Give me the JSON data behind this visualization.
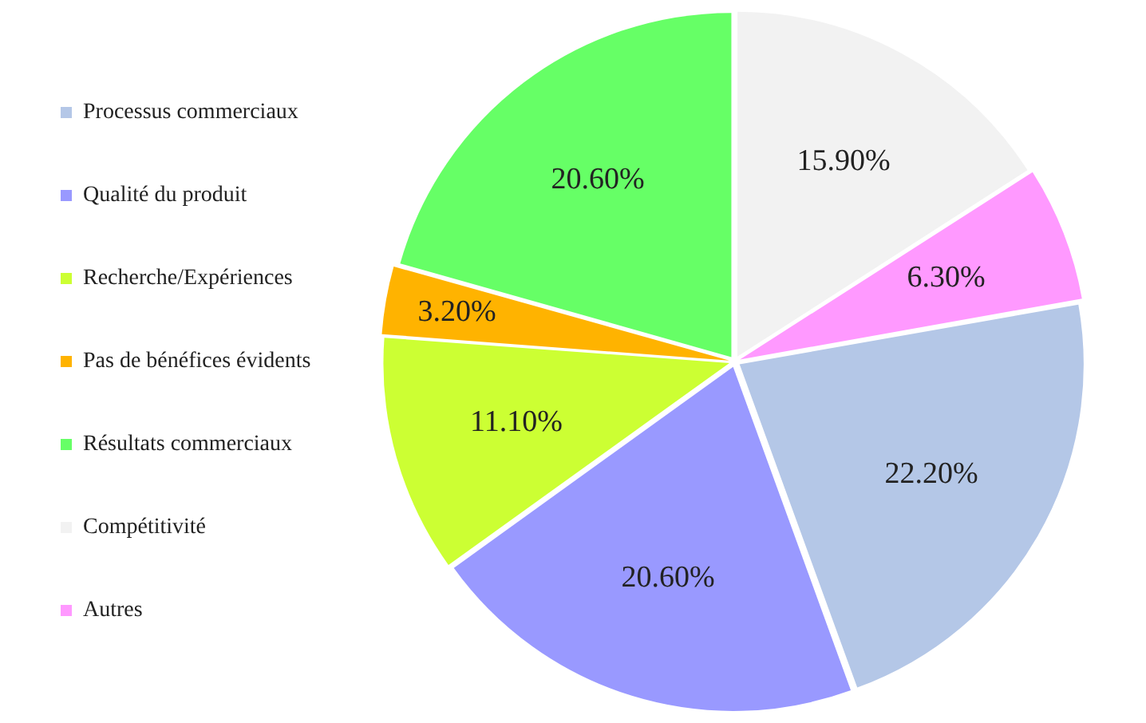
{
  "chart_data": {
    "type": "pie",
    "categories": [
      "Processus commerciaux",
      "Qualité du produit",
      "Recherche/Expériences",
      "Pas de bénéfices évidents",
      "Résultats commerciaux",
      "Compétitivité",
      "Autres"
    ],
    "values": [
      22.2,
      20.6,
      11.1,
      3.2,
      20.6,
      15.9,
      6.3
    ],
    "value_labels": [
      "22.20%",
      "20.60%",
      "11.10%",
      "3.20%",
      "20.60%",
      "15.90%",
      "6.30%"
    ],
    "colors": [
      "#b4c7e7",
      "#9999ff",
      "#ccff33",
      "#ffb300",
      "#66ff66",
      "#f2f2f2",
      "#ff99ff"
    ],
    "legend": "left"
  }
}
